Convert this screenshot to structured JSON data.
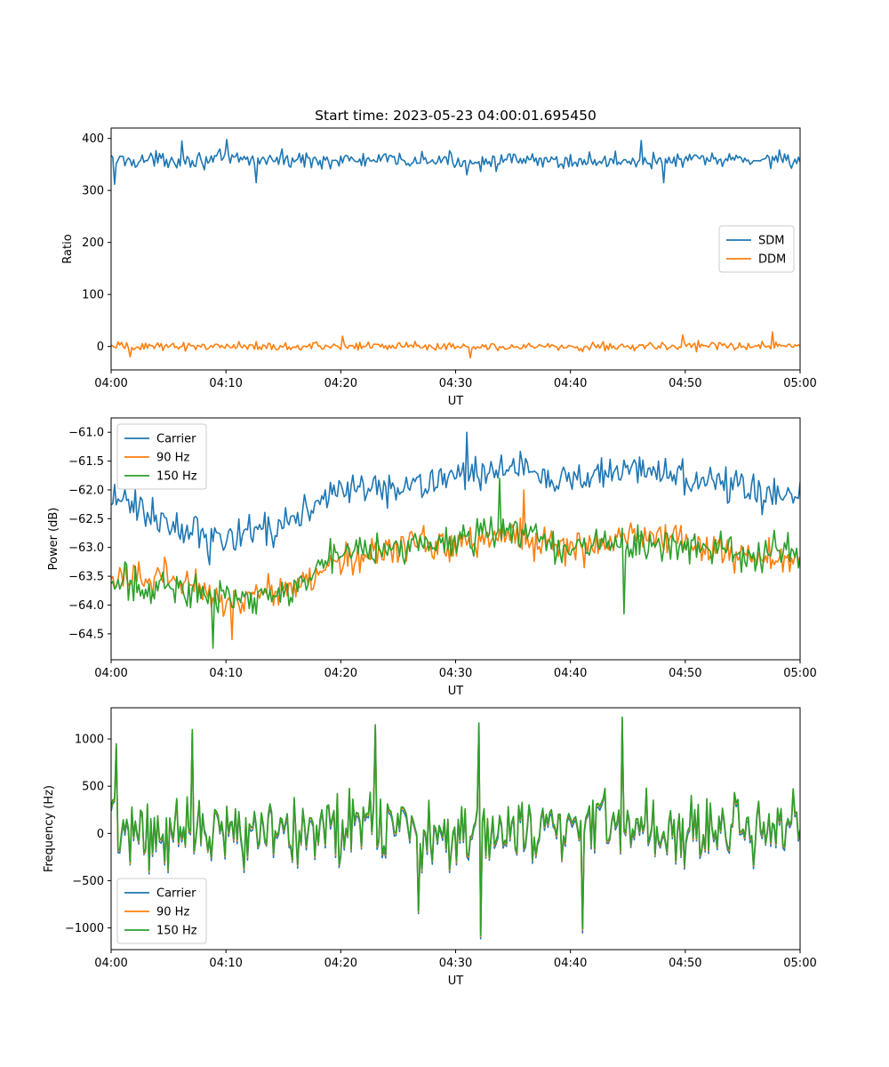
{
  "figure": {
    "title": "Start time: 2023-05-23 04:00:01.695450"
  },
  "chart_data": [
    {
      "type": "line",
      "title": "Start time: 2023-05-23 04:00:01.695450",
      "xlabel": "UT",
      "ylabel": "Ratio",
      "x_range": [
        "04:00",
        "05:00"
      ],
      "xticks": [
        "04:00",
        "04:10",
        "04:20",
        "04:30",
        "04:40",
        "04:50",
        "05:00"
      ],
      "ylim": [
        -45,
        420
      ],
      "yticks": [
        0,
        100,
        200,
        300,
        400
      ],
      "ytick_labels": [
        "0",
        "100",
        "200",
        "300",
        "400"
      ],
      "legend_position": "center-right",
      "grid": false,
      "series": [
        {
          "name": "SDM",
          "color": "#1f77b4",
          "samples": 400,
          "baseline": [
            {
              "t": "04:00",
              "v": 358
            },
            {
              "t": "04:10",
              "v": 360
            },
            {
              "t": "04:20",
              "v": 358
            },
            {
              "t": "04:30",
              "v": 357
            },
            {
              "t": "04:40",
              "v": 356
            },
            {
              "t": "04:50",
              "v": 358
            },
            {
              "t": "05:00",
              "v": 360
            }
          ],
          "noise_amplitude": 15,
          "marked_values": [
            {
              "t": "04:00:20",
              "v": 312
            },
            {
              "t": "04:06:10",
              "v": 395
            },
            {
              "t": "04:10:00",
              "v": 398
            },
            {
              "t": "04:12:40",
              "v": 315
            },
            {
              "t": "04:31:00",
              "v": 330
            },
            {
              "t": "04:46:10",
              "v": 396
            },
            {
              "t": "04:48:10",
              "v": 315
            },
            {
              "t": "04:58:10",
              "v": 378
            }
          ]
        },
        {
          "name": "DDM",
          "color": "#ff7f0e",
          "samples": 400,
          "baseline": [
            {
              "t": "04:00",
              "v": 0
            },
            {
              "t": "04:10",
              "v": 1
            },
            {
              "t": "04:20",
              "v": 0
            },
            {
              "t": "04:30",
              "v": 1
            },
            {
              "t": "04:40",
              "v": 0
            },
            {
              "t": "04:50",
              "v": 1
            },
            {
              "t": "05:00",
              "v": 1
            }
          ],
          "noise_amplitude": 8,
          "marked_values": [
            {
              "t": "04:01:40",
              "v": -20
            },
            {
              "t": "04:20:10",
              "v": 20
            },
            {
              "t": "04:31:20",
              "v": -22
            },
            {
              "t": "04:49:50",
              "v": 22
            },
            {
              "t": "04:57:40",
              "v": 28
            }
          ]
        }
      ]
    },
    {
      "type": "line",
      "xlabel": "UT",
      "ylabel": "Power (dB)",
      "x_range": [
        "04:00",
        "05:00"
      ],
      "xticks": [
        "04:00",
        "04:10",
        "04:20",
        "04:30",
        "04:40",
        "04:50",
        "05:00"
      ],
      "ylim": [
        -64.95,
        -60.75
      ],
      "yticks": [
        -64.5,
        -64.0,
        -63.5,
        -63.0,
        -62.5,
        -62.0,
        -61.5,
        -61.0
      ],
      "ytick_labels": [
        "−64.5",
        "−64.0",
        "−63.5",
        "−63.0",
        "−62.5",
        "−62.0",
        "−61.5",
        "−61.0"
      ],
      "legend_position": "upper-left",
      "grid": false,
      "series": [
        {
          "name": "Carrier",
          "color": "#1f77b4",
          "samples": 400,
          "baseline": [
            {
              "t": "04:00",
              "v": -62.1
            },
            {
              "t": "04:05",
              "v": -62.6
            },
            {
              "t": "04:10",
              "v": -62.9
            },
            {
              "t": "04:15",
              "v": -62.6
            },
            {
              "t": "04:20",
              "v": -62.0
            },
            {
              "t": "04:25",
              "v": -62.0
            },
            {
              "t": "04:30",
              "v": -61.8
            },
            {
              "t": "04:35",
              "v": -61.6
            },
            {
              "t": "04:40",
              "v": -61.9
            },
            {
              "t": "04:45",
              "v": -61.6
            },
            {
              "t": "04:50",
              "v": -61.8
            },
            {
              "t": "04:55",
              "v": -62.0
            },
            {
              "t": "05:00",
              "v": -62.1
            }
          ],
          "noise_amplitude": 0.28,
          "marked_values": [
            {
              "t": "04:31:00",
              "v": -61.0
            },
            {
              "t": "04:08:30",
              "v": -63.3
            }
          ]
        },
        {
          "name": "90 Hz",
          "color": "#ff7f0e",
          "samples": 400,
          "baseline": [
            {
              "t": "04:00",
              "v": -63.6
            },
            {
              "t": "04:05",
              "v": -63.5
            },
            {
              "t": "04:10",
              "v": -63.9
            },
            {
              "t": "04:15",
              "v": -63.8
            },
            {
              "t": "04:20",
              "v": -63.2
            },
            {
              "t": "04:25",
              "v": -63.0
            },
            {
              "t": "04:30",
              "v": -62.9
            },
            {
              "t": "04:35",
              "v": -62.8
            },
            {
              "t": "04:40",
              "v": -63.0
            },
            {
              "t": "04:45",
              "v": -62.8
            },
            {
              "t": "04:50",
              "v": -62.9
            },
            {
              "t": "04:55",
              "v": -63.1
            },
            {
              "t": "05:00",
              "v": -63.2
            }
          ],
          "noise_amplitude": 0.3,
          "marked_values": [
            {
              "t": "04:10:30",
              "v": -64.6
            },
            {
              "t": "04:36:00",
              "v": -62.0
            }
          ]
        },
        {
          "name": "150 Hz",
          "color": "#2ca02c",
          "samples": 400,
          "baseline": [
            {
              "t": "04:00",
              "v": -63.6
            },
            {
              "t": "04:05",
              "v": -63.7
            },
            {
              "t": "04:10",
              "v": -63.9
            },
            {
              "t": "04:15",
              "v": -63.8
            },
            {
              "t": "04:20",
              "v": -63.1
            },
            {
              "t": "04:25",
              "v": -63.0
            },
            {
              "t": "04:30",
              "v": -62.9
            },
            {
              "t": "04:35",
              "v": -62.7
            },
            {
              "t": "04:40",
              "v": -63.0
            },
            {
              "t": "04:45",
              "v": -62.9
            },
            {
              "t": "04:50",
              "v": -63.0
            },
            {
              "t": "04:55",
              "v": -63.1
            },
            {
              "t": "05:00",
              "v": -63.0
            }
          ],
          "noise_amplitude": 0.3,
          "marked_values": [
            {
              "t": "04:08:50",
              "v": -64.75
            },
            {
              "t": "04:33:50",
              "v": -61.8
            },
            {
              "t": "04:44:40",
              "v": -64.15
            }
          ]
        }
      ]
    },
    {
      "type": "line",
      "xlabel": "UT",
      "ylabel": "Frequency (Hz)",
      "x_range": [
        "04:00",
        "05:00"
      ],
      "xticks": [
        "04:00",
        "04:10",
        "04:20",
        "04:30",
        "04:40",
        "04:50",
        "05:00"
      ],
      "ylim": [
        -1230,
        1330
      ],
      "yticks": [
        -1000,
        -500,
        0,
        500,
        1000
      ],
      "ytick_labels": [
        "−1000",
        "−500",
        "0",
        "500",
        "1000"
      ],
      "legend_position": "lower-left",
      "grid": false,
      "series": [
        {
          "name": "Carrier",
          "color": "#1f77b4",
          "samples": 400,
          "offset": -35
        },
        {
          "name": "90 Hz",
          "color": "#ff7f0e",
          "samples": 400,
          "offset": -12
        },
        {
          "name": "150 Hz",
          "color": "#2ca02c",
          "samples": 400,
          "offset": 0
        }
      ],
      "shared_signal": {
        "baseline": [
          {
            "t": "04:00",
            "v": 60
          },
          {
            "t": "04:30",
            "v": 60
          },
          {
            "t": "05:00",
            "v": 60
          }
        ],
        "noise_amplitude": 360,
        "marked_values": [
          {
            "t": "04:00:30",
            "v": 950
          },
          {
            "t": "04:07:00",
            "v": 1100
          },
          {
            "t": "04:23:00",
            "v": 1150
          },
          {
            "t": "04:32:00",
            "v": 1170
          },
          {
            "t": "04:32:10",
            "v": -1080
          },
          {
            "t": "04:44:30",
            "v": 1230
          },
          {
            "t": "04:41:00",
            "v": -1010
          },
          {
            "t": "04:26:50",
            "v": -820
          }
        ]
      }
    }
  ]
}
